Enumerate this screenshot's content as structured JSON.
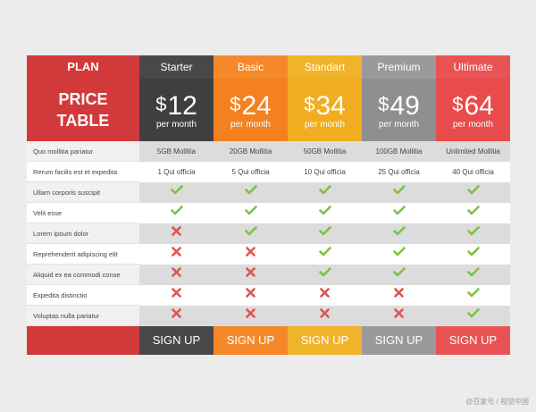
{
  "colors": {
    "red": "#d2393b",
    "dark": "#48484b",
    "orange": "#f5892a",
    "yellow": "#f0b42a",
    "gray": "#9a9a9d",
    "pink": "#ea5354",
    "check": "#7cc243",
    "cross": "#e2524f"
  },
  "header": {
    "plan_label": "PLAN",
    "title_line1": "PRICE",
    "title_line2": "TABLE"
  },
  "plans": [
    {
      "name": "Starter",
      "currency": "$",
      "price": "12",
      "period": "per month",
      "storage": "5GB",
      "storage_suffix": "Mollitia",
      "qty": "1",
      "qty_suffix": "Qui officia",
      "signup": "SIGN UP"
    },
    {
      "name": "Basic",
      "currency": "$",
      "price": "24",
      "period": "per month",
      "storage": "20GB",
      "storage_suffix": "Mollitia",
      "qty": "5",
      "qty_suffix": "Qui officia",
      "signup": "SIGN UP"
    },
    {
      "name": "Standart",
      "currency": "$",
      "price": "34",
      "period": "per month",
      "storage": "50GB",
      "storage_suffix": "Mollitia",
      "qty": "10",
      "qty_suffix": "Qui officia",
      "signup": "SIGN UP"
    },
    {
      "name": "Premium",
      "currency": "$",
      "price": "49",
      "period": "per month",
      "storage": "100GB",
      "storage_suffix": "Mollitia",
      "qty": "25",
      "qty_suffix": "Qui officia",
      "signup": "SIGN UP"
    },
    {
      "name": "Ultimate",
      "currency": "$",
      "price": "64",
      "period": "per month",
      "storage": "Unlimited",
      "storage_suffix": "Mollitia",
      "qty": "40",
      "qty_suffix": "Qui officia",
      "signup": "SIGN UP"
    }
  ],
  "features": [
    {
      "label": "Quo mollitia pariatur"
    },
    {
      "label": "Rerum facilis est et expedita"
    },
    {
      "label": "Ullam corporis suscipit",
      "values": [
        true,
        true,
        true,
        true,
        true
      ]
    },
    {
      "label": "Velit esse",
      "values": [
        true,
        true,
        true,
        true,
        true
      ]
    },
    {
      "label": "Lorem ipsum dolor",
      "values": [
        false,
        true,
        true,
        true,
        true
      ]
    },
    {
      "label": "Reprehenderit adipiscing elit",
      "values": [
        false,
        false,
        true,
        true,
        true
      ]
    },
    {
      "label": "Aliquid ex ea commodi conse",
      "values": [
        false,
        false,
        true,
        true,
        true
      ]
    },
    {
      "label": "Expedita distinctio",
      "values": [
        false,
        false,
        false,
        false,
        true
      ]
    },
    {
      "label": "Voluptas nulla pariatur",
      "values": [
        false,
        false,
        false,
        false,
        true
      ]
    }
  ],
  "watermark": "@百家号 / 视觉中国"
}
